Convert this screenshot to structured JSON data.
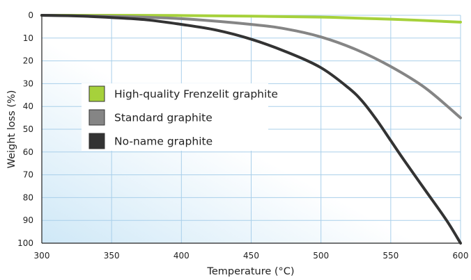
{
  "chart_data": {
    "type": "line",
    "title": "",
    "xlabel": "Temperature (°C)",
    "ylabel": "Weight loss (%)",
    "xlim": [
      300,
      600
    ],
    "ylim": [
      0,
      100
    ],
    "y_inverted": true,
    "grid": true,
    "legend_position": "upper-left inside",
    "xticks": [
      "300",
      "350",
      "400",
      "450",
      "500",
      "550",
      "600"
    ],
    "yticks": [
      "0",
      "10",
      "20",
      "30",
      "40",
      "50",
      "60",
      "70",
      "80",
      "90",
      "100"
    ],
    "series": [
      {
        "name": "High-quality Frenzelit graphite",
        "color": "#a6d13b",
        "points": [
          [
            300,
            0
          ],
          [
            350,
            0
          ],
          [
            400,
            0.1
          ],
          [
            450,
            0.4
          ],
          [
            500,
            0.8
          ],
          [
            550,
            1.7
          ],
          [
            600,
            3
          ]
        ]
      },
      {
        "name": "Standard graphite",
        "color": "#858585",
        "points": [
          [
            300,
            0
          ],
          [
            350,
            0.5
          ],
          [
            400,
            1.5
          ],
          [
            450,
            4
          ],
          [
            475,
            6
          ],
          [
            500,
            9.5
          ],
          [
            525,
            15
          ],
          [
            550,
            22.5
          ],
          [
            575,
            32
          ],
          [
            600,
            45
          ]
        ]
      },
      {
        "name": "No-name graphite",
        "color": "#333333",
        "points": [
          [
            300,
            0
          ],
          [
            325,
            0.3
          ],
          [
            350,
            1
          ],
          [
            375,
            2
          ],
          [
            400,
            4
          ],
          [
            425,
            6.5
          ],
          [
            450,
            10.5
          ],
          [
            475,
            16
          ],
          [
            500,
            23
          ],
          [
            520,
            32
          ],
          [
            530,
            38
          ],
          [
            540,
            46
          ],
          [
            550,
            55
          ],
          [
            560,
            64
          ],
          [
            575,
            77
          ],
          [
            590,
            90
          ],
          [
            600,
            100
          ]
        ]
      }
    ]
  }
}
